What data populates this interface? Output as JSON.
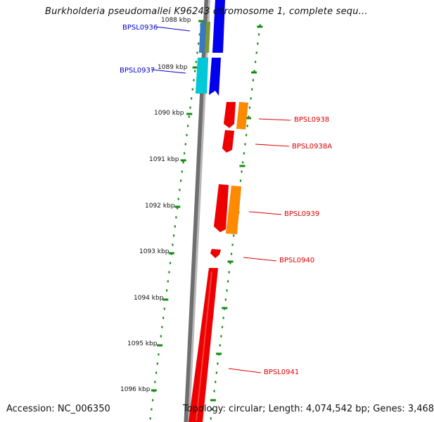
{
  "title": "Burkholderia pseudomallei K96243 chromosome 1, complete sequ...",
  "footer": {
    "accession": "Accession: NC_006350",
    "topology": "Topology: circular; Length: 4,074,542 bp; Genes: 3,468"
  },
  "colors": {
    "ring_tick": "#138c13",
    "backbone_dark": "#6f6f6f",
    "backbone_light": "#b8b8b8",
    "forward_label": "#0000cc",
    "reverse_label": "#dd0000",
    "gene_red": "#ef0000",
    "gene_orange": "#ff8a00",
    "gene_blue": "#0000ee",
    "gene_teal": "#00c8d8",
    "gene_olive": "#7f9a2a",
    "gene_steel": "#3978c4"
  },
  "kbp_labels": [
    "1088 kbp",
    "1089 kbp",
    "1090 kbp",
    "1091 kbp",
    "1092 kbp",
    "1093 kbp",
    "1094 kbp",
    "1095 kbp",
    "1096 kbp"
  ],
  "gene_labels": [
    "BPSL0936",
    "BPSL0937",
    "BPSL0938",
    "BPSL0938A",
    "BPSL0939",
    "BPSL0940",
    "BPSL0941"
  ]
}
